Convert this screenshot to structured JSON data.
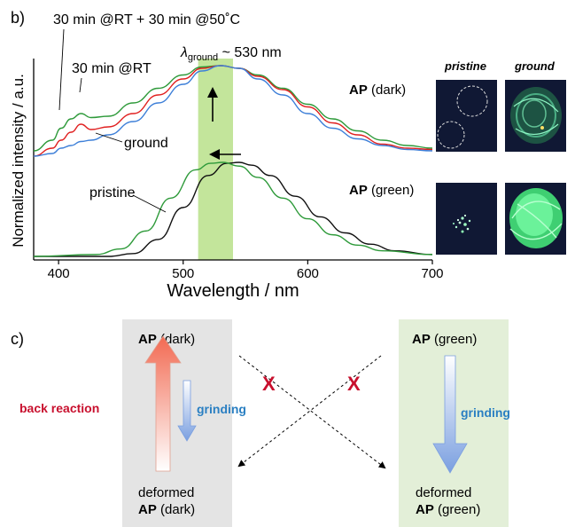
{
  "panel_b": {
    "label": "b)",
    "annotations": {
      "rt_50c": "30 min @RT + 30 min @50˚C",
      "rt": "30 min @RT",
      "ground": "ground",
      "pristine": "pristine",
      "lambda_prefix": "λ",
      "lambda_sub": "ground",
      "lambda_suffix": " ~ 530 nm"
    },
    "photos": {
      "col_pristine": "pristine",
      "col_ground": "ground",
      "row_dark_bold": "AP",
      "row_dark_rest": " (dark)",
      "row_green_bold": "AP",
      "row_green_rest": " (green)"
    },
    "colors": {
      "green_trace": "#2e9a3a",
      "red_trace": "#e02020",
      "blue_trace": "#3d7fd8",
      "black_trace": "#111111",
      "highlight_band": "#b8e08a"
    }
  },
  "chart_data": {
    "type": "line",
    "xlabel": "Wavelength / nm",
    "ylabel": "Normalized intensity / a.u.",
    "xlim": [
      380,
      700
    ],
    "xticks": [
      400,
      500,
      600,
      700
    ],
    "highlight_band_nm": [
      512,
      540
    ],
    "series": [
      {
        "name": "30 min @RT + 30 min @50˚C",
        "group": "AP (dark)",
        "color": "#2e9a3a",
        "x": [
          380,
          395,
          402,
          410,
          418,
          426,
          440,
          460,
          480,
          500,
          515,
          530,
          545,
          560,
          580,
          600,
          620,
          640,
          660,
          680,
          700
        ],
        "y": [
          0.78,
          0.86,
          0.95,
          1.02,
          1.06,
          1.03,
          1.04,
          1.14,
          1.25,
          1.35,
          1.41,
          1.42,
          1.4,
          1.35,
          1.25,
          1.13,
          1.02,
          0.93,
          0.86,
          0.82,
          0.8
        ]
      },
      {
        "name": "30 min @RT",
        "group": "AP (dark)",
        "color": "#e02020",
        "x": [
          380,
          395,
          402,
          410,
          418,
          426,
          440,
          460,
          480,
          500,
          515,
          530,
          545,
          560,
          580,
          600,
          620,
          640,
          660,
          680,
          700
        ],
        "y": [
          0.74,
          0.8,
          0.86,
          0.92,
          0.98,
          0.94,
          0.96,
          1.06,
          1.2,
          1.32,
          1.4,
          1.42,
          1.4,
          1.34,
          1.24,
          1.11,
          0.99,
          0.9,
          0.83,
          0.8,
          0.79
        ]
      },
      {
        "name": "ground",
        "group": "AP (dark)",
        "color": "#3d7fd8",
        "x": [
          380,
          395,
          402,
          410,
          418,
          426,
          440,
          460,
          480,
          500,
          515,
          530,
          545,
          560,
          580,
          600,
          620,
          640,
          660,
          680,
          700
        ],
        "y": [
          0.74,
          0.76,
          0.8,
          0.82,
          0.85,
          0.86,
          0.9,
          1.0,
          1.14,
          1.28,
          1.38,
          1.42,
          1.4,
          1.32,
          1.2,
          1.06,
          0.95,
          0.87,
          0.82,
          0.79,
          0.78
        ]
      },
      {
        "name": "pristine",
        "group": "AP (green)",
        "color": "#111111",
        "x": [
          380,
          440,
          460,
          480,
          500,
          520,
          535,
          545,
          555,
          570,
          590,
          610,
          630,
          650,
          670,
          700
        ],
        "y": [
          0.0,
          0.0,
          0.03,
          0.18,
          0.52,
          0.86,
          0.99,
          1.0,
          0.97,
          0.86,
          0.64,
          0.42,
          0.25,
          0.13,
          0.06,
          0.02
        ]
      },
      {
        "name": "ground (green)",
        "group": "AP (green)",
        "color": "#2e9a3a",
        "x": [
          380,
          430,
          450,
          470,
          490,
          510,
          522,
          532,
          545,
          560,
          580,
          600,
          620,
          640,
          660,
          700
        ],
        "y": [
          0.0,
          0.02,
          0.08,
          0.27,
          0.62,
          0.92,
          0.99,
          1.0,
          0.96,
          0.84,
          0.62,
          0.4,
          0.23,
          0.12,
          0.06,
          0.02
        ]
      }
    ]
  },
  "panel_c": {
    "label": "c)",
    "left_top_bold": "AP",
    "left_top_rest": " (dark)",
    "left_bottom_line1": "deformed",
    "left_bottom_bold": "AP",
    "left_bottom_rest": " (dark)",
    "right_top_bold": "AP",
    "right_top_rest": " (green)",
    "right_bottom_line1": "deformed",
    "right_bottom_bold": "AP",
    "right_bottom_rest": " (green)",
    "back_reaction": "back reaction",
    "grinding_left": "grinding",
    "grinding_right": "grinding",
    "cross_left": "X",
    "cross_right": "X",
    "colors": {
      "left_panel_bg": "#e4e4e4",
      "right_panel_bg": "#e3efd8",
      "back_reaction": "#c8102e",
      "grinding": "#2a7fc2"
    }
  }
}
